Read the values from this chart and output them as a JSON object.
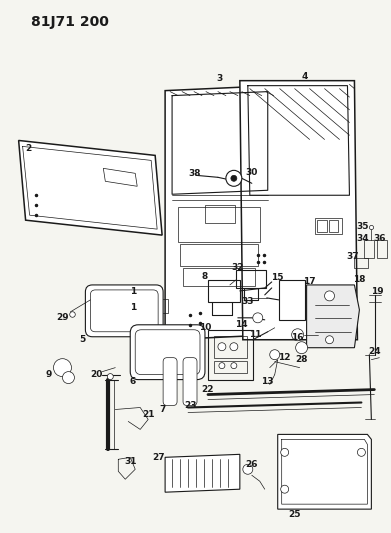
{
  "title": "81J71 200",
  "bg_color": "#f5f5f0",
  "line_color": "#1a1a1a",
  "title_fontsize": 10,
  "label_fontsize": 6.5,
  "lw_main": 1.1,
  "lw_med": 0.8,
  "lw_thin": 0.5,
  "figsize": [
    3.91,
    5.33
  ],
  "dpi": 100
}
